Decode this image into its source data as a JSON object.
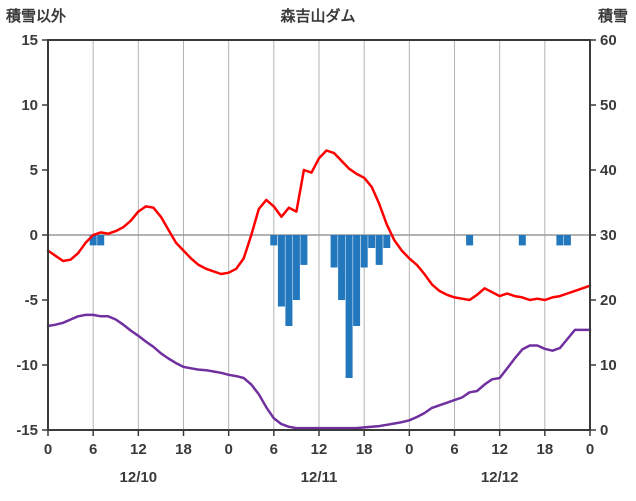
{
  "chart_data": {
    "type": "line+bar",
    "title": "森吉山ダム",
    "left_axis": {
      "label": "積雪以外",
      "min": -15,
      "max": 15,
      "ticks": [
        15,
        10,
        5,
        0,
        -5,
        -10,
        -15
      ]
    },
    "right_axis": {
      "label": "積雪",
      "min": 0,
      "max": 60,
      "ticks": [
        60,
        50,
        40,
        30,
        20,
        10,
        0
      ]
    },
    "x_axis": {
      "hours_total": 72,
      "hour_ticks": [
        "0",
        "6",
        "12",
        "18",
        "0",
        "6",
        "12",
        "18",
        "0",
        "6",
        "12",
        "18",
        "0"
      ],
      "date_labels": [
        "12/10",
        "12/11",
        "12/12"
      ]
    },
    "grid": "vertical-only",
    "legend": "none",
    "colors": {
      "temperature": "#ff0000",
      "snow_depth": "#7030a0",
      "precipitation": "#2277bd",
      "grid": "#b3b3b3",
      "zero_line": "#9a9a9a",
      "border": "#3a3a3a",
      "text": "#3a3a3a",
      "background": "#ffffff"
    },
    "series": [
      {
        "name": "temperature",
        "type": "line",
        "axis": "left",
        "color": "#ff0000",
        "values": [
          -1.2,
          -1.6,
          -2.0,
          -1.9,
          -1.4,
          -0.6,
          0.0,
          0.2,
          0.1,
          0.3,
          0.6,
          1.1,
          1.8,
          2.2,
          2.1,
          1.4,
          0.4,
          -0.6,
          -1.2,
          -1.8,
          -2.3,
          -2.6,
          -2.8,
          -3.0,
          -2.9,
          -2.6,
          -1.8,
          0.0,
          2.0,
          2.7,
          2.2,
          1.4,
          2.1,
          1.8,
          5.0,
          4.8,
          5.9,
          6.5,
          6.3,
          5.7,
          5.1,
          4.7,
          4.4,
          3.7,
          2.4,
          0.8,
          -0.4,
          -1.2,
          -1.8,
          -2.3,
          -3.0,
          -3.8,
          -4.3,
          -4.6,
          -4.8,
          -4.9,
          -5.0,
          -4.6,
          -4.1,
          -4.4,
          -4.7,
          -4.5,
          -4.7,
          -4.8,
          -5.0,
          -4.9,
          -5.0,
          -4.8,
          -4.7,
          -4.5,
          -4.3,
          -4.1,
          -3.9
        ]
      },
      {
        "name": "snow-depth",
        "type": "line",
        "axis": "right",
        "color": "#7030a0",
        "values": [
          16.0,
          16.2,
          16.5,
          17.0,
          17.5,
          17.7,
          17.7,
          17.5,
          17.5,
          17.0,
          16.2,
          15.3,
          14.5,
          13.6,
          12.8,
          11.8,
          11.0,
          10.3,
          9.7,
          9.5,
          9.3,
          9.2,
          9.0,
          8.8,
          8.5,
          8.3,
          8.0,
          7.0,
          5.5,
          3.5,
          1.8,
          0.9,
          0.5,
          0.3,
          0.3,
          0.3,
          0.3,
          0.3,
          0.3,
          0.3,
          0.3,
          0.3,
          0.4,
          0.5,
          0.6,
          0.8,
          1.0,
          1.2,
          1.5,
          2.0,
          2.6,
          3.4,
          3.8,
          4.2,
          4.6,
          5.0,
          5.8,
          6.0,
          7.0,
          7.8,
          8.0,
          9.5,
          11.0,
          12.4,
          13.0,
          13.0,
          12.5,
          12.2,
          12.6,
          14.0,
          15.4,
          15.4,
          15.4
        ]
      },
      {
        "name": "precipitation",
        "type": "bar",
        "axis": "left",
        "color": "#2277bd",
        "values": [
          0,
          0,
          0,
          0,
          0,
          0,
          -0.8,
          -0.8,
          0,
          0,
          0,
          0,
          0,
          0,
          0,
          0,
          0,
          0,
          0,
          0,
          0,
          0,
          0,
          0,
          0,
          0,
          0,
          0,
          0,
          0,
          -0.8,
          -5.5,
          -7.0,
          -5.0,
          -2.3,
          0,
          0,
          0,
          -2.5,
          -5.0,
          -11.0,
          -7.0,
          -2.5,
          -1.0,
          -2.3,
          -1.0,
          0,
          0,
          0,
          0,
          0,
          0,
          0,
          0,
          0,
          0,
          -0.8,
          0,
          0,
          0,
          0,
          0,
          0,
          -0.8,
          0,
          0,
          0,
          0,
          -0.8,
          -0.8,
          0,
          0,
          0
        ]
      }
    ]
  }
}
